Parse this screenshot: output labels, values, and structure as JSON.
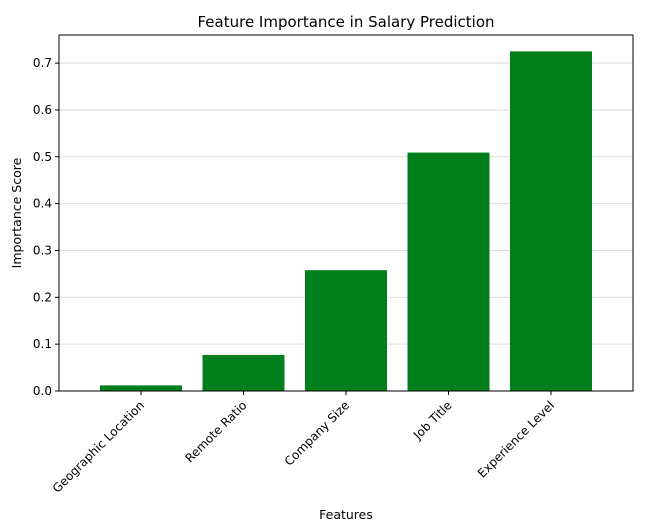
{
  "chart_data": {
    "type": "bar",
    "title": "Feature Importance in Salary Prediction",
    "xlabel": "Features",
    "ylabel": "Importance Score",
    "categories": [
      "Geographic Location",
      "Remote Ratio",
      "Company Size",
      "Job Title",
      "Experience Level"
    ],
    "values": [
      0.012,
      0.077,
      0.258,
      0.509,
      0.725
    ],
    "ylim": [
      0,
      0.76
    ],
    "yticks": [
      0.0,
      0.1,
      0.2,
      0.3,
      0.4,
      0.5,
      0.6,
      0.7
    ],
    "ytick_labels": [
      "0.0",
      "0.1",
      "0.2",
      "0.3",
      "0.4",
      "0.5",
      "0.6",
      "0.7"
    ],
    "grid": "horizontal",
    "bar_color": "#007f1c",
    "grid_color": "#dddddd"
  }
}
